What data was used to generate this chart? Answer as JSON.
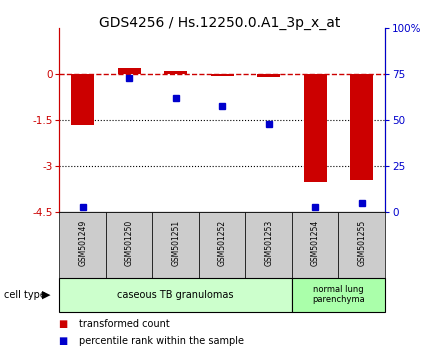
{
  "title": "GDS4256 / Hs.12250.0.A1_3p_x_at",
  "samples": [
    "GSM501249",
    "GSM501250",
    "GSM501251",
    "GSM501252",
    "GSM501253",
    "GSM501254",
    "GSM501255"
  ],
  "transformed_count": [
    -1.65,
    0.2,
    0.12,
    -0.05,
    -0.08,
    -3.5,
    -3.45
  ],
  "percentile_rank": [
    3,
    73,
    62,
    58,
    48,
    3,
    5
  ],
  "hline_1": -1.5,
  "hline_2": -3.0,
  "bar_color": "#cc0000",
  "dot_color": "#0000cc",
  "bg_color": "#ffffff",
  "group1_label": "caseous TB granulomas",
  "group1_indices": [
    0,
    1,
    2,
    3,
    4
  ],
  "group2_label": "normal lung\nparenchyma",
  "group2_indices": [
    5,
    6
  ],
  "group1_bg": "#ccffcc",
  "group2_bg": "#aaffaa",
  "sample_bg": "#cccccc",
  "cell_type_label": "cell type",
  "legend_bar_label": "transformed count",
  "legend_dot_label": "percentile rank within the sample",
  "right_axis_color": "#0000cc",
  "left_axis_color": "#cc0000",
  "title_fontsize": 10,
  "tick_fontsize": 7.5,
  "bar_width": 0.5
}
